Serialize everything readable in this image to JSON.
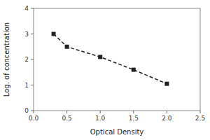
{
  "chart_data": {
    "type": "line",
    "x": [
      0.3,
      0.5,
      1.0,
      1.5,
      2.0
    ],
    "values": [
      3.0,
      2.5,
      2.1,
      1.6,
      1.05
    ],
    "xlabel": "Optical Density",
    "ylabel": "Log. of concentration",
    "xlim": [
      0,
      2.5
    ],
    "ylim": [
      0,
      4
    ],
    "xticks": [
      {
        "value": 0,
        "label": "0.0"
      },
      0.5,
      {
        "value": 1,
        "label": "1.0"
      },
      1.5,
      {
        "value": 2,
        "label": "2.0"
      },
      2.5
    ],
    "yticks": [
      0,
      1,
      2,
      3,
      4
    ],
    "color": "#222222",
    "marker": "square",
    "line_style": "dashed"
  }
}
